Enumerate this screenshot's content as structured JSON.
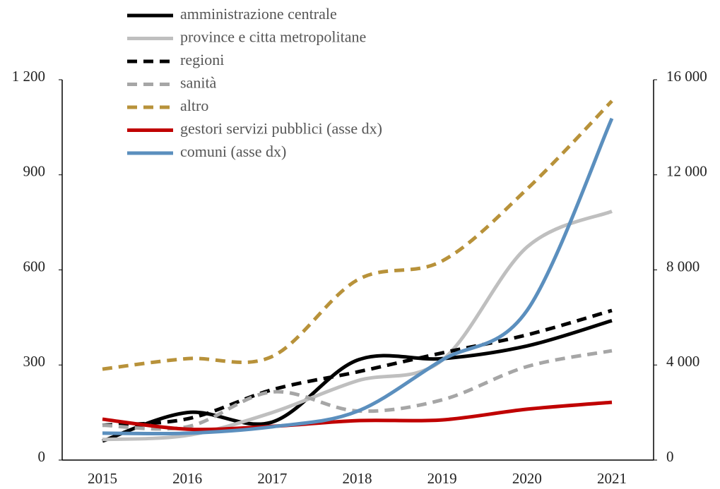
{
  "chart_data": {
    "type": "line",
    "x": [
      "2015",
      "2016",
      "2017",
      "2018",
      "2019",
      "2020",
      "2021"
    ],
    "series": [
      {
        "name": "amministrazione centrale",
        "color": "#000000",
        "dash": false,
        "values": [
          60,
          150,
          120,
          315,
          320,
          360,
          440
        ]
      },
      {
        "name": "province e citta metropolitane",
        "color": "#bfbfbf",
        "dash": false,
        "values": [
          65,
          78,
          150,
          250,
          315,
          672,
          785
        ]
      },
      {
        "name": "regioni",
        "color": "#000000",
        "dash": true,
        "values": [
          110,
          130,
          222,
          278,
          338,
          395,
          472
        ]
      },
      {
        "name": "sanità",
        "color": "#a6a6a6",
        "dash": true,
        "values": [
          110,
          105,
          215,
          155,
          190,
          295,
          345
        ]
      },
      {
        "name": "altro",
        "color": "#b8923a",
        "dash": true,
        "values": [
          287,
          320,
          327,
          568,
          628,
          855,
          1133
        ]
      },
      {
        "name": "gestori servizi pubblici (asse dx)",
        "color": "#c00000",
        "dash": false,
        "axis": "y2",
        "values": [
          1720,
          1300,
          1420,
          1660,
          1690,
          2140,
          2430
        ]
      },
      {
        "name": "comuni (asse dx)",
        "color": "#5b8fbe",
        "dash": false,
        "axis": "y2",
        "values": [
          1130,
          1130,
          1400,
          2050,
          4210,
          6290,
          14370
        ]
      }
    ],
    "ylim": [
      0,
      1200
    ],
    "yticks": [
      0,
      300,
      600,
      900,
      {
        "value": 1200,
        "label": "1 200"
      }
    ],
    "y2lim": [
      0,
      16000
    ],
    "y2ticks": [
      0,
      {
        "value": 4000,
        "label": "4 000"
      },
      {
        "value": 8000,
        "label": "8 000"
      },
      {
        "value": 12000,
        "label": "12 000"
      },
      {
        "value": 16000,
        "label": "16 000"
      }
    ],
    "smooth": true
  }
}
